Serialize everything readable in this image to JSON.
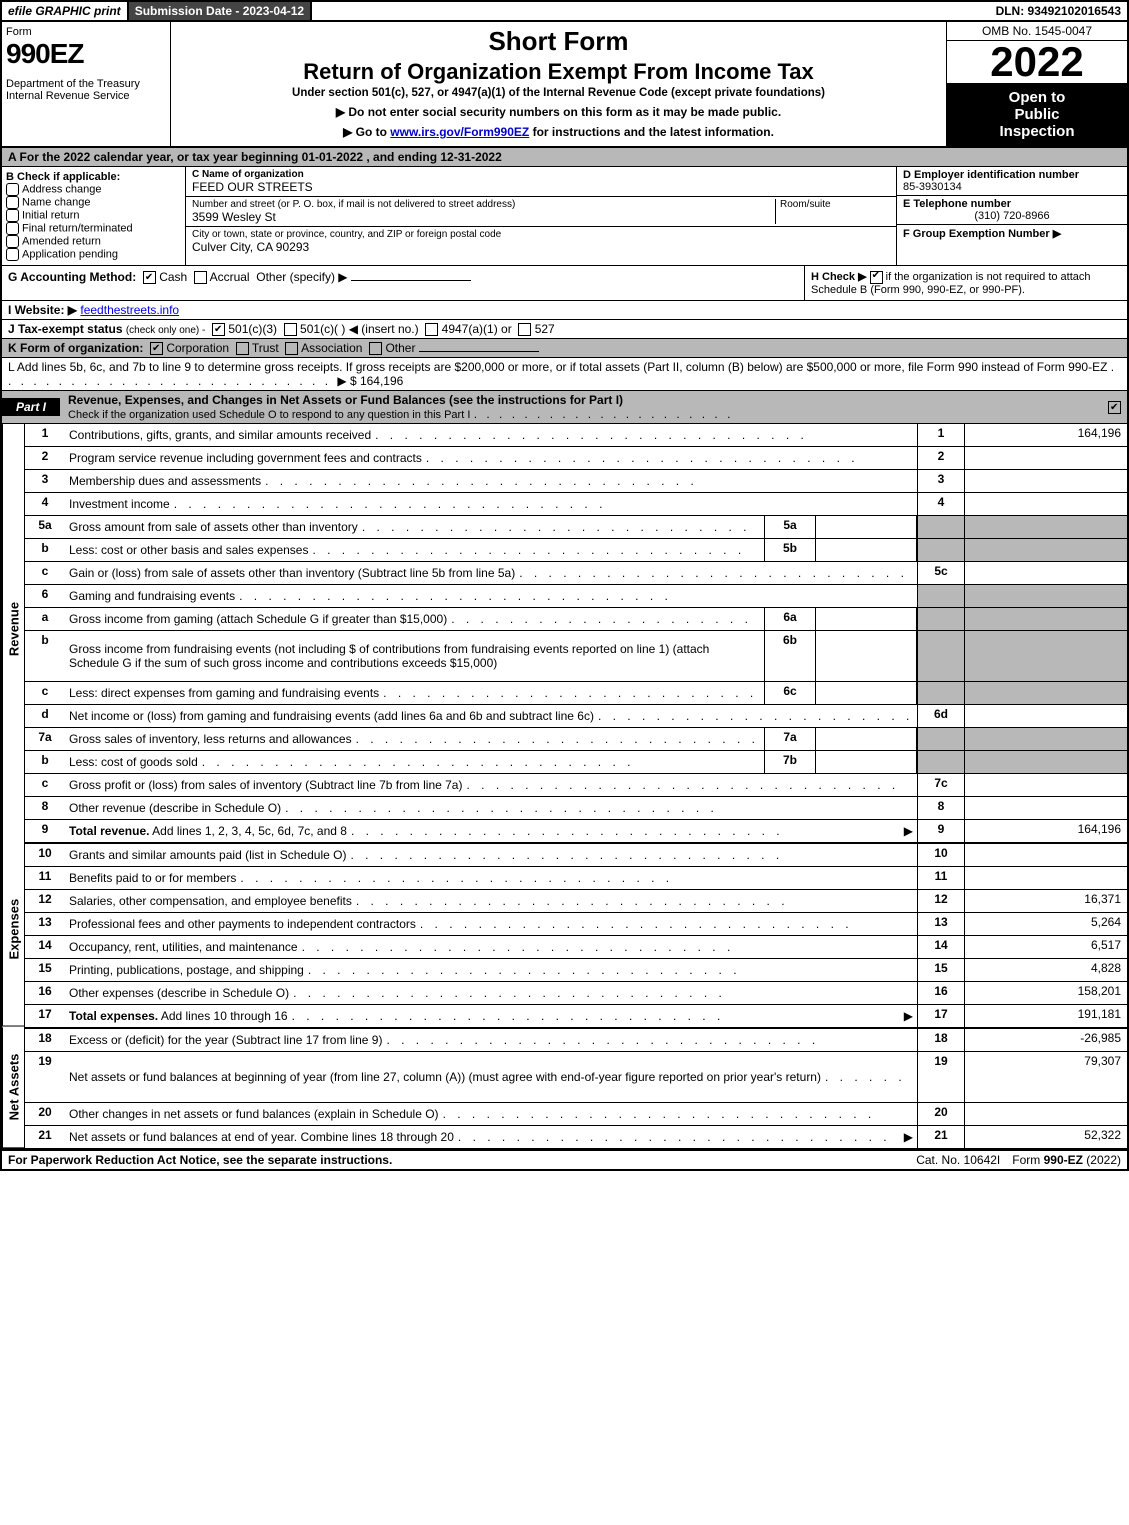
{
  "topbar": {
    "efile": "efile GRAPHIC print",
    "subdate": "Submission Date - 2023-04-12",
    "dln": "DLN: 93492102016543"
  },
  "header": {
    "form_label": "Form",
    "form_no": "990EZ",
    "dept": "Department of the Treasury",
    "irs": "Internal Revenue Service",
    "short_form": "Short Form",
    "title2": "Return of Organization Exempt From Income Tax",
    "subtitle": "Under section 501(c), 527, or 4947(a)(1) of the Internal Revenue Code (except private foundations)",
    "instr1": "▶ Do not enter social security numbers on this form as it may be made public.",
    "instr2_pre": "▶ Go to ",
    "instr2_link": "www.irs.gov/Form990EZ",
    "instr2_post": " for instructions and the latest information.",
    "omb": "OMB No. 1545-0047",
    "year": "2022",
    "blackbox1": "Open to",
    "blackbox2": "Public",
    "blackbox3": "Inspection"
  },
  "sectionA": "A  For the 2022 calendar year, or tax year beginning 01-01-2022 , and ending 12-31-2022",
  "sectionB": {
    "title": "B  Check if applicable:",
    "items": [
      "Address change",
      "Name change",
      "Initial return",
      "Final return/terminated",
      "Amended return",
      "Application pending"
    ]
  },
  "sectionC": {
    "label": "C Name of organization",
    "name": "FEED OUR STREETS",
    "addr_label": "Number and street (or P. O. box, if mail is not delivered to street address)",
    "addr": "3599 Wesley St",
    "room_label": "Room/suite",
    "city_label": "City or town, state or province, country, and ZIP or foreign postal code",
    "city": "Culver City, CA  90293"
  },
  "sectionD": {
    "label": "D Employer identification number",
    "ein": "85-3930134"
  },
  "sectionE": {
    "label": "E Telephone number",
    "phone": "(310) 720-8966"
  },
  "sectionF": {
    "label": "F Group Exemption Number  ▶"
  },
  "sectionG": {
    "label": "G Accounting Method:",
    "cash": "Cash",
    "accrual": "Accrual",
    "other": "Other (specify) ▶"
  },
  "sectionH": {
    "label": "H  Check ▶",
    "text": "if the organization is not required to attach Schedule B (Form 990, 990-EZ, or 990-PF)."
  },
  "sectionI": {
    "label": "I Website: ▶",
    "value": "feedthestreets.info"
  },
  "sectionJ": {
    "label": "J Tax-exempt status",
    "sub": "(check only one) -",
    "opt1": "501(c)(3)",
    "opt2": "501(c)(  ) ◀ (insert no.)",
    "opt3": "4947(a)(1) or",
    "opt4": "527"
  },
  "sectionK": {
    "label": "K Form of organization:",
    "opts": [
      "Corporation",
      "Trust",
      "Association",
      "Other"
    ]
  },
  "sectionL": {
    "text": "L Add lines 5b, 6c, and 7b to line 9 to determine gross receipts. If gross receipts are $200,000 or more, or if total assets (Part II, column (B) below) are $500,000 or more, file Form 990 instead of Form 990-EZ",
    "amount": "▶ $ 164,196"
  },
  "partI": {
    "tab": "Part I",
    "title": "Revenue, Expenses, and Changes in Net Assets or Fund Balances (see the instructions for Part I)",
    "checknote": "Check if the organization used Schedule O to respond to any question in this Part I"
  },
  "sidelab": {
    "revenue": "Revenue",
    "expenses": "Expenses",
    "netassets": "Net Assets"
  },
  "revenue": [
    {
      "n": "1",
      "desc": "Contributions, gifts, grants, and similar amounts received",
      "ln": "1",
      "amt": "164,196"
    },
    {
      "n": "2",
      "desc": "Program service revenue including government fees and contracts",
      "ln": "2",
      "amt": ""
    },
    {
      "n": "3",
      "desc": "Membership dues and assessments",
      "ln": "3",
      "amt": ""
    },
    {
      "n": "4",
      "desc": "Investment income",
      "ln": "4",
      "amt": ""
    },
    {
      "n": "5a",
      "desc": "Gross amount from sale of assets other than inventory",
      "sub": "5a"
    },
    {
      "n": "b",
      "desc": "Less: cost or other basis and sales expenses",
      "sub": "5b"
    },
    {
      "n": "c",
      "desc": "Gain or (loss) from sale of assets other than inventory (Subtract line 5b from line 5a)",
      "ln": "5c",
      "amt": ""
    },
    {
      "n": "6",
      "desc": "Gaming and fundraising events",
      "shaded": true
    },
    {
      "n": "a",
      "desc": "Gross income from gaming (attach Schedule G if greater than $15,000)",
      "sub": "6a"
    },
    {
      "n": "b",
      "desc": "Gross income from fundraising events (not including $                              of contributions from fundraising events reported on line 1) (attach Schedule G if the sum of such gross income and contributions exceeds $15,000)",
      "sub": "6b",
      "tall": true
    },
    {
      "n": "c",
      "desc": "Less: direct expenses from gaming and fundraising events",
      "sub": "6c"
    },
    {
      "n": "d",
      "desc": "Net income or (loss) from gaming and fundraising events (add lines 6a and 6b and subtract line 6c)",
      "ln": "6d",
      "amt": ""
    },
    {
      "n": "7a",
      "desc": "Gross sales of inventory, less returns and allowances",
      "sub": "7a"
    },
    {
      "n": "b",
      "desc": "Less: cost of goods sold",
      "sub": "7b"
    },
    {
      "n": "c",
      "desc": "Gross profit or (loss) from sales of inventory (Subtract line 7b from line 7a)",
      "ln": "7c",
      "amt": ""
    },
    {
      "n": "8",
      "desc": "Other revenue (describe in Schedule O)",
      "ln": "8",
      "amt": ""
    },
    {
      "n": "9",
      "desc": "Total revenue. Add lines 1, 2, 3, 4, 5c, 6d, 7c, and 8",
      "ln": "9",
      "amt": "164,196",
      "bold": true,
      "arrow": true
    }
  ],
  "expenses": [
    {
      "n": "10",
      "desc": "Grants and similar amounts paid (list in Schedule O)",
      "ln": "10",
      "amt": ""
    },
    {
      "n": "11",
      "desc": "Benefits paid to or for members",
      "ln": "11",
      "amt": ""
    },
    {
      "n": "12",
      "desc": "Salaries, other compensation, and employee benefits",
      "ln": "12",
      "amt": "16,371"
    },
    {
      "n": "13",
      "desc": "Professional fees and other payments to independent contractors",
      "ln": "13",
      "amt": "5,264"
    },
    {
      "n": "14",
      "desc": "Occupancy, rent, utilities, and maintenance",
      "ln": "14",
      "amt": "6,517"
    },
    {
      "n": "15",
      "desc": "Printing, publications, postage, and shipping",
      "ln": "15",
      "amt": "4,828"
    },
    {
      "n": "16",
      "desc": "Other expenses (describe in Schedule O)",
      "ln": "16",
      "amt": "158,201"
    },
    {
      "n": "17",
      "desc": "Total expenses. Add lines 10 through 16",
      "ln": "17",
      "amt": "191,181",
      "bold": true,
      "arrow": true
    }
  ],
  "netassets": [
    {
      "n": "18",
      "desc": "Excess or (deficit) for the year (Subtract line 17 from line 9)",
      "ln": "18",
      "amt": "-26,985"
    },
    {
      "n": "19",
      "desc": "Net assets or fund balances at beginning of year (from line 27, column (A)) (must agree with end-of-year figure reported on prior year's return)",
      "ln": "19",
      "amt": "79,307",
      "tall": true
    },
    {
      "n": "20",
      "desc": "Other changes in net assets or fund balances (explain in Schedule O)",
      "ln": "20",
      "amt": ""
    },
    {
      "n": "21",
      "desc": "Net assets or fund balances at end of year. Combine lines 18 through 20",
      "ln": "21",
      "amt": "52,322",
      "arrow": true
    }
  ],
  "footer": {
    "left": "For Paperwork Reduction Act Notice, see the separate instructions.",
    "center": "Cat. No. 10642I",
    "right_pre": "Form ",
    "right_bold": "990-EZ",
    "right_post": " (2022)"
  }
}
